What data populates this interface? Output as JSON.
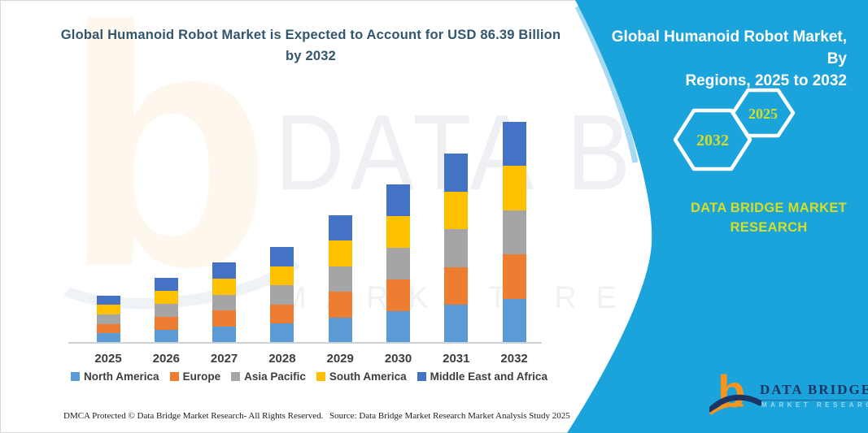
{
  "header": {
    "title_line1": "Global Humanoid Robot Market is Expected to Account for USD 86.39 Billion",
    "title_line2": "by 2032"
  },
  "watermark": {
    "line1": "DATA BRIDGE",
    "line2": "MARKET RESEARCH",
    "logo_letter": "b"
  },
  "chart_data": {
    "type": "bar",
    "stacked": true,
    "title": "Global Humanoid Robot Market is Expected to Account for USD 86.39 Billion by 2032",
    "unit": "USD Billion",
    "key_value": "USD 86.39 Billion by 2032",
    "categories": [
      "2025",
      "2026",
      "2027",
      "2028",
      "2029",
      "2030",
      "2031",
      "2032"
    ],
    "series": [
      {
        "name": "North America",
        "color": "#5B9BD5",
        "values": [
          3.7,
          5.1,
          6.3,
          7.5,
          10.0,
          12.4,
          14.8,
          17.3
        ]
      },
      {
        "name": "Europe",
        "color": "#ED7D31",
        "values": [
          3.7,
          5.1,
          6.3,
          7.5,
          10.0,
          12.4,
          14.8,
          17.3
        ]
      },
      {
        "name": "Asia Pacific",
        "color": "#A5A5A5",
        "values": [
          3.7,
          5.1,
          6.3,
          7.5,
          10.0,
          12.4,
          14.8,
          17.3
        ]
      },
      {
        "name": "South America",
        "color": "#FFC000",
        "values": [
          3.7,
          5.1,
          6.3,
          7.5,
          10.0,
          12.4,
          14.8,
          17.3
        ]
      },
      {
        "name": "Middle East and Africa",
        "color": "#4472C4",
        "values": [
          3.7,
          5.1,
          6.3,
          7.5,
          10.0,
          12.4,
          14.8,
          17.3
        ]
      }
    ],
    "totals_estimated": [
      18.5,
      25.5,
      31.5,
      37.5,
      50.0,
      62.0,
      74.0,
      86.39
    ],
    "y_axis_visible": false,
    "grid": false,
    "legend_position": "bottom"
  },
  "side_panel": {
    "background_color": "#1BA3DC",
    "title_line1": "Global Humanoid Robot Market, By",
    "title_line2": "Regions, 2025 to 2032",
    "hexagons": [
      {
        "label": "2032"
      },
      {
        "label": "2025"
      }
    ],
    "brand_caption": "DATA BRIDGE MARKET RESEARCH",
    "accent_text_color": "#D6DE23"
  },
  "footer": {
    "dmca": "DMCA Protected © Data Bridge Market Research-  All Rights Reserved.",
    "source": "Source: Data Bridge Market Research  Market Analysis Study 2025"
  },
  "brand_logo": {
    "letter": "b",
    "wordmark": "DATA BRIDGE",
    "subtext": "MARKET RESEARCH",
    "orange": "#F7941E",
    "navy": "#1B3664"
  }
}
